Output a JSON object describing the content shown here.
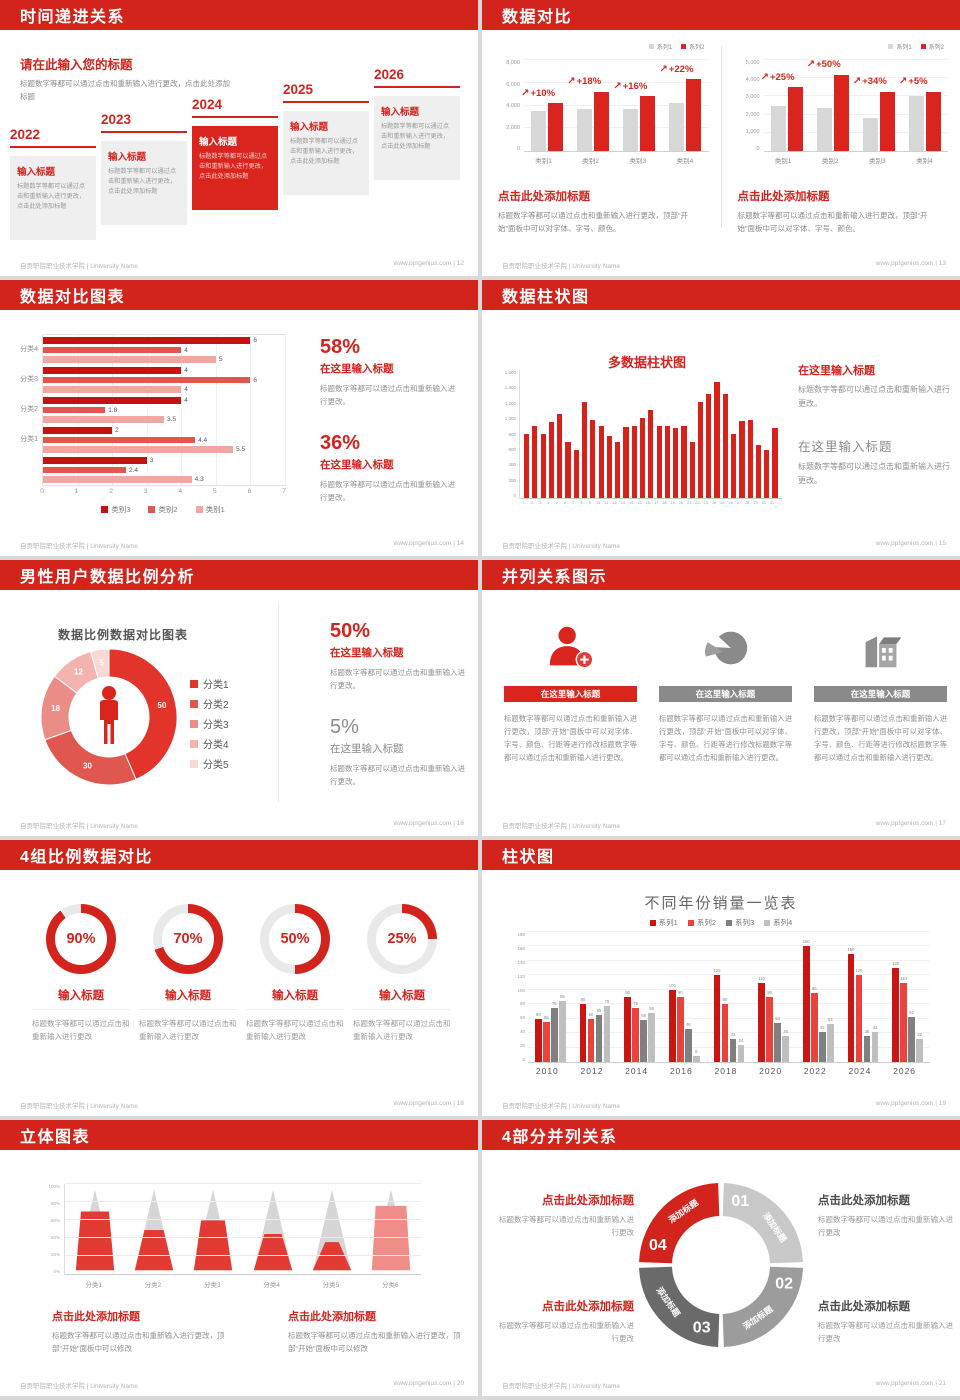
{
  "footer": {
    "left": "自贡职院职业技术学院 | University Name",
    "site": "www.pptgenius.com"
  },
  "colors": {
    "accent": "#d2231c",
    "bar_red": "#d9251d",
    "bar_gray": "#d8d8d8",
    "ring_track": "#e9e9e9"
  },
  "slides": {
    "s1": {
      "title": "时间递进关系",
      "page": "| 12",
      "intro_title": "请在此输入您的标题",
      "intro_body": "标题数字等都可以通过点击和重新输入进行更改，点击此处添加标题",
      "items": [
        {
          "year": "2022",
          "card_title": "输入标题",
          "card_body": "标题数字等都可以通过点击和重新输入进行更改，点击此处添加标题",
          "highlight": false
        },
        {
          "year": "2023",
          "card_title": "输入标题",
          "card_body": "标题数字等都可以通过点击和重新输入进行更改，点击此处添加标题",
          "highlight": false
        },
        {
          "year": "2024",
          "card_title": "输入标题",
          "card_body": "标题数字等都可以通过点击和重新输入进行更改，点击此处添加标题",
          "highlight": true
        },
        {
          "year": "2025",
          "card_title": "输入标题",
          "card_body": "标题数字等都可以通过点击和重新输入进行更改，点击此处添加标题",
          "highlight": false
        },
        {
          "year": "2026",
          "card_title": "输入标题",
          "card_body": "标题数字等都可以通过点击和重新输入进行更改，点击此处添加标题",
          "highlight": false
        }
      ]
    },
    "s2": {
      "title": "数据对比",
      "page": "| 13",
      "legend": [
        "系列1",
        "系列2"
      ],
      "series_colors": [
        "#d8d8d8",
        "#d9251d"
      ],
      "caption_title": "点击此处添加标题",
      "caption_body": "标题数字等都可以通过点击和重新输入进行更改，顶部“开始”面板中可以对字体、字号、颜色。",
      "charts": [
        {
          "yticks": [
            "8,000",
            "6,000",
            "4,000",
            "2,000",
            "0"
          ],
          "ymax": 8000,
          "categories": [
            "类别1",
            "类别2",
            "类别3",
            "类别4"
          ],
          "series1": [
            3500,
            3700,
            3650,
            4250
          ],
          "series2": [
            4200,
            5200,
            4800,
            6300
          ],
          "labels": [
            "+10%",
            "+18%",
            "+16%",
            "+22%"
          ]
        },
        {
          "yticks": [
            "5,000",
            "4,000",
            "3,000",
            "2,000",
            "1,000",
            "0"
          ],
          "ymax": 5000,
          "categories": [
            "类别1",
            "类别2",
            "类别3",
            "类别4"
          ],
          "series1": [
            2500,
            2350,
            1800,
            3000
          ],
          "series2": [
            3500,
            4200,
            3250,
            3250
          ],
          "labels": [
            "+25%",
            "+50%",
            "+34%",
            "+5%"
          ]
        }
      ]
    },
    "s3": {
      "title": "数据对比图表",
      "page": "| 14",
      "xmax": 7,
      "xticks": [
        "0",
        "1",
        "2",
        "3",
        "4",
        "5",
        "6",
        "7"
      ],
      "bar_colors": [
        "#c51210",
        "#e2564e",
        "#f0a7a2"
      ],
      "legend": [
        {
          "label": "类别3",
          "color": "#c51210"
        },
        {
          "label": "类别2",
          "color": "#e2564e"
        },
        {
          "label": "类别1",
          "color": "#f0a7a2"
        }
      ],
      "groups": [
        {
          "label": "分类4",
          "values": [
            6,
            4,
            5
          ]
        },
        {
          "label": "分类3",
          "values": [
            4,
            6,
            4
          ]
        },
        {
          "label": "分类2",
          "values": [
            4,
            1.8,
            3.5
          ]
        },
        {
          "label": "分类1",
          "values": [
            2,
            4.4,
            5.5
          ]
        },
        {
          "label": "",
          "values": [
            3,
            2.4,
            4.3
          ]
        }
      ],
      "stats": [
        {
          "pct": "58%",
          "title": "在这里输入标题",
          "body": "标题数字等都可以通过点击和重新输入进行更改。"
        },
        {
          "pct": "36%",
          "title": "在这里输入标题",
          "body": "标题数字等都可以通过点击和重新输入进行更改。"
        }
      ]
    },
    "s4": {
      "title": "数据柱状图",
      "page": "| 15",
      "chart_title": "多数据柱状图",
      "bar_color": "#d9211b",
      "ymax": 1600,
      "yticks": [
        "1,600",
        "1,400",
        "1,200",
        "1,000",
        "800",
        "600",
        "400",
        "200",
        "0"
      ],
      "values": [
        800,
        900,
        800,
        950,
        1050,
        700,
        600,
        1200,
        980,
        900,
        780,
        700,
        890,
        900,
        1000,
        1100,
        900,
        900,
        880,
        900,
        700,
        1200,
        1300,
        1450,
        1300,
        800,
        960,
        970,
        660,
        600,
        870
      ],
      "xlabels": [
        "1",
        "2",
        "3",
        "4",
        "5",
        "6",
        "7",
        "8",
        "9",
        "10",
        "11",
        "12",
        "13",
        "14",
        "15",
        "16",
        "17",
        "18",
        "19",
        "20",
        "21",
        "22",
        "23",
        "24",
        "25",
        "26",
        "27",
        "28",
        "29",
        "30",
        "31"
      ],
      "blocks": [
        {
          "title": "在这里输入标题",
          "body": "标题数字等都可以通过点击和重新输入进行更改。",
          "red": true
        },
        {
          "title": "在这里输入标题",
          "body": "标题数字等都可以通过点击和重新输入进行更改。",
          "red": false
        }
      ]
    },
    "s5": {
      "title": "男性用户数据比例分析",
      "page": "| 16",
      "chart_title": "数据比例数据对比图表",
      "slices": [
        {
          "label": "分类1",
          "value": 50,
          "color": "#e2342a"
        },
        {
          "label": "分类2",
          "value": 30,
          "color": "#e05750"
        },
        {
          "label": "分类3",
          "value": 18,
          "color": "#ea8d87"
        },
        {
          "label": "分类4",
          "value": 12,
          "color": "#f3b4b0"
        },
        {
          "label": "分类5",
          "value": 5,
          "color": "#f9d8d6"
        }
      ],
      "stats": [
        {
          "pct": "50%",
          "title": "在这里输入标题",
          "body": "标题数字等都可以通过点击和重新输入进行更改。",
          "red": true
        },
        {
          "pct": "5%",
          "title": "在这里输入标题",
          "body": "标题数字等都可以通过点击和重新输入进行更改。",
          "red": false
        }
      ]
    },
    "s6": {
      "title": "并列关系图示",
      "page": "| 17",
      "items": [
        {
          "icon": "person-plus-icon",
          "banner": "在这里输入标题",
          "red": true,
          "body": "标题数字等都可以通过点击和重新输入进行更改，顶部“开始”面板中可以对字体、字号、颜色、行距等进行修改标题数字等都可以通过点击和重新输入进行更改。"
        },
        {
          "icon": "pie-icon",
          "banner": "在这里输入标题",
          "red": false,
          "body": "标题数字等都可以通过点击和重新输入进行更改，顶部“开始”面板中可以对字体、字号、颜色、行距等进行修改标题数字等都可以通过点击和重新输入进行更改。"
        },
        {
          "icon": "building-icon",
          "banner": "在这里输入标题",
          "red": false,
          "body": "标题数字等都可以通过点击和重新输入进行更改，顶部“开始”面板中可以对字体、字号、颜色、行距等进行修改标题数字等都可以通过点击和重新输入进行更改。"
        }
      ]
    },
    "s7": {
      "title": "4组比例数据对比",
      "page": "| 18",
      "items": [
        {
          "pct": 90,
          "pct_label": "90%",
          "title": "输入标题",
          "body": "标题数字等都可以通过点击和重新输入进行更改"
        },
        {
          "pct": 70,
          "pct_label": "70%",
          "title": "输入标题",
          "body": "标题数字等都可以通过点击和重新输入进行更改"
        },
        {
          "pct": 50,
          "pct_label": "50%",
          "title": "输入标题",
          "body": "标题数字等都可以通过点击和重新输入进行更改"
        },
        {
          "pct": 25,
          "pct_label": "25%",
          "title": "输入标题",
          "body": "标题数字等都可以通过点击和重新输入进行更改"
        }
      ]
    },
    "s8": {
      "title": "柱状图",
      "page": "| 19",
      "chart_title": "不同年份销量一览表",
      "ymax": 180,
      "yticks": [
        "180",
        "160",
        "140",
        "120",
        "100",
        "80",
        "60",
        "40",
        "20",
        "0"
      ],
      "categories": [
        "2010",
        "2012",
        "2014",
        "2016",
        "2018",
        "2020",
        "2022",
        "2024",
        "2026"
      ],
      "series": [
        {
          "name": "系列1",
          "color": "#c91612",
          "values": [
            60,
            80,
            90,
            100,
            120,
            110,
            160,
            150,
            130
          ]
        },
        {
          "name": "系列2",
          "color": "#e8433c",
          "values": [
            55,
            60,
            75,
            90,
            80,
            90,
            96,
            120,
            110
          ]
        },
        {
          "name": "系列3",
          "color": "#808080",
          "values": [
            75,
            65,
            58,
            46,
            32,
            54,
            42,
            36,
            62
          ]
        },
        {
          "name": "系列4",
          "color": "#bfbfbf",
          "values": [
            85,
            78,
            68,
            8,
            24,
            36,
            53,
            42,
            32
          ]
        }
      ]
    },
    "s9": {
      "title": "立体图表",
      "page": "| 20",
      "yticks": [
        "100%",
        "80%",
        "60%",
        "40%",
        "20%",
        "0%"
      ],
      "cones": [
        {
          "label": "分类1",
          "fill": 73,
          "color": "#e23b33"
        },
        {
          "label": "分类2",
          "fill": 50,
          "color": "#e23b33"
        },
        {
          "label": "分类3",
          "fill": 62,
          "color": "#e23b33"
        },
        {
          "label": "分类4",
          "fill": 45,
          "color": "#e23b33"
        },
        {
          "label": "分类5",
          "fill": 35,
          "color": "#e23b33"
        },
        {
          "label": "分类6",
          "fill": 80,
          "color": "#ef8d88"
        }
      ],
      "captions": [
        {
          "title": "点击此处添加标题",
          "body": "标题数字等都可以通过点击和重新输入进行更改，顶部“开始”面板中可以修改"
        },
        {
          "title": "点击此处添加标题",
          "body": "标题数字等都可以通过点击和重新输入进行更改，顶部“开始”面板中可以修改"
        }
      ]
    },
    "s10": {
      "title": "4部分并列关系",
      "page": "| 21",
      "segments": [
        {
          "num": "01",
          "label": "添加标题",
          "color": "#c8c8c8"
        },
        {
          "num": "02",
          "label": "添加标题",
          "color": "#9c9c9c"
        },
        {
          "num": "03",
          "label": "添加标题",
          "color": "#6a6a6a"
        },
        {
          "num": "04",
          "label": "添加标题",
          "color": "#d2231c"
        }
      ],
      "blocks": [
        {
          "pos": "tl",
          "red": true,
          "title": "点击此处添加标题",
          "body": "标题数字等都可以通过点击和重新输入进行更改"
        },
        {
          "pos": "tr",
          "red": false,
          "title": "点击此处添加标题",
          "body": "标题数字等都可以通过点击和重新输入进行更改"
        },
        {
          "pos": "bl",
          "red": true,
          "title": "点击此处添加标题",
          "body": "标题数字等都可以通过点击和重新输入进行更改"
        },
        {
          "pos": "br",
          "red": false,
          "title": "点击此处添加标题",
          "body": "标题数字等都可以通过点击和重新输入进行更改"
        }
      ]
    }
  }
}
